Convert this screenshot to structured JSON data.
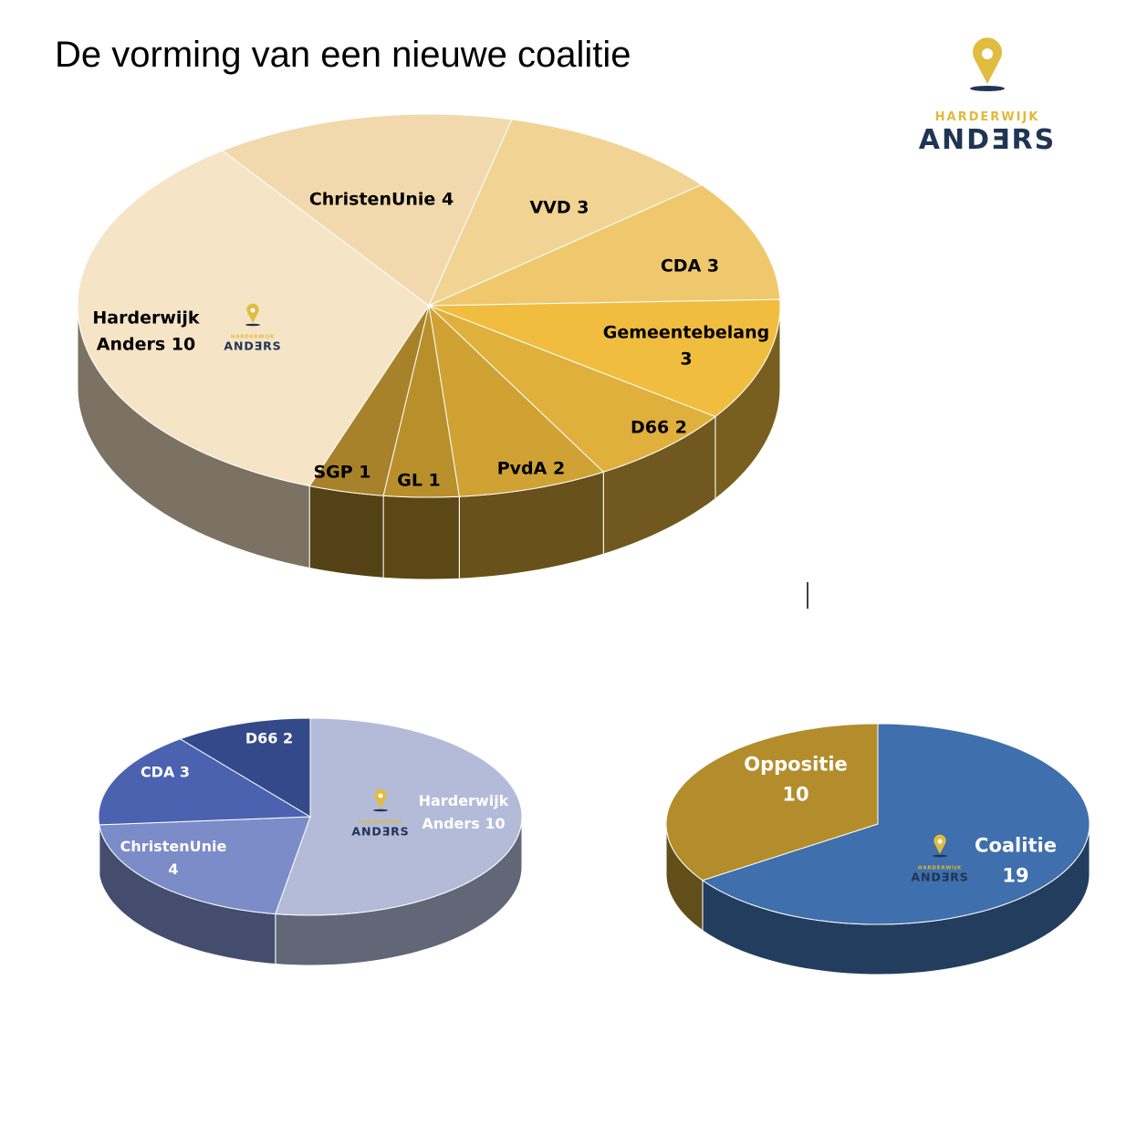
{
  "title": "De vorming van een nieuwe coalitie",
  "logo": {
    "top": "HARDERWIJK",
    "bottom": "ANDƎRS"
  },
  "chart_data": [
    {
      "type": "pie",
      "categories": [
        "ChristenUnie",
        "VVD",
        "CDA",
        "Gemeentebelang",
        "D66",
        "PvdA",
        "GL",
        "SGP",
        "Harderwijk Anders"
      ],
      "values": [
        4,
        3,
        3,
        3,
        2,
        2,
        1,
        1,
        10
      ],
      "colors": [
        "#f2d8ad",
        "#f1d393",
        "#efc86e",
        "#f0bd3e",
        "#e0b03c",
        "#cfa233",
        "#b88f2b",
        "#a8822a",
        "#f6e4c6"
      ]
    },
    {
      "type": "pie",
      "categories": [
        "Harderwijk Anders",
        "ChristenUnie",
        "CDA",
        "D66"
      ],
      "values": [
        10,
        4,
        3,
        2
      ],
      "colors": [
        "#b3bbd9",
        "#7b8cc8",
        "#4a62b0",
        "#34498a"
      ]
    },
    {
      "type": "pie",
      "categories": [
        "Coalitie",
        "Oppositie"
      ],
      "values": [
        19,
        10
      ],
      "colors": [
        "#3f6fac",
        "#b38d2c"
      ]
    }
  ]
}
